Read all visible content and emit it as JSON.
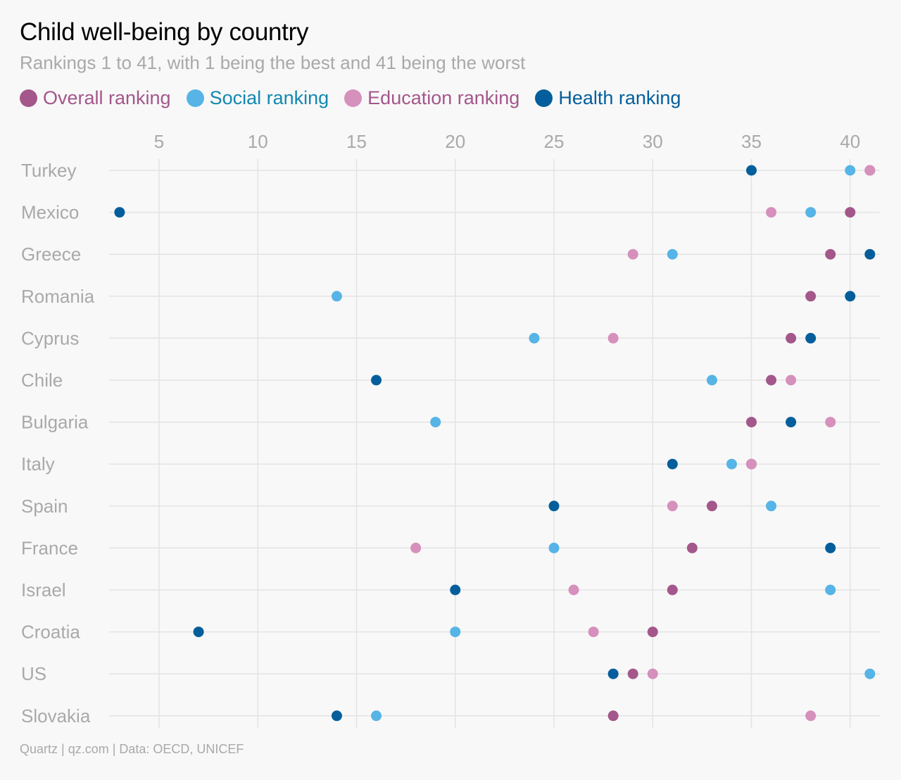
{
  "chart_data": {
    "type": "scatter",
    "title": "Child well-being by country",
    "subtitle": "Rankings 1 to 41, with 1 being the best and 41 being the worst",
    "source": "Quartz | qz.com | Data: OECD, UNICEF",
    "xlim": [
      2.5,
      41.5
    ],
    "x_ticks": [
      5,
      10,
      15,
      20,
      25,
      30,
      35,
      40
    ],
    "grid": true,
    "legend_position": "top-left",
    "categories": [
      "Turkey",
      "Mexico",
      "Greece",
      "Romania",
      "Cyprus",
      "Chile",
      "Bulgaria",
      "Italy",
      "Spain",
      "France",
      "Israel",
      "Croatia",
      "US",
      "Slovakia"
    ],
    "series": [
      {
        "name": "Overall ranking",
        "color": "#a4578a",
        "values": [
          41,
          40,
          39,
          38,
          37,
          36,
          35,
          35,
          33,
          32,
          31,
          30,
          29,
          28
        ]
      },
      {
        "name": "Social ranking",
        "color": "#56b4e6",
        "values": [
          40,
          38,
          31,
          14,
          24,
          33,
          19,
          34,
          36,
          25,
          39,
          20,
          41,
          16
        ]
      },
      {
        "name": "Education ranking",
        "color": "#d690bc",
        "values": [
          41,
          36,
          29,
          null,
          28,
          37,
          39,
          35,
          31,
          18,
          26,
          27,
          30,
          38
        ]
      },
      {
        "name": "Health ranking",
        "color": "#045e9b",
        "values": [
          35,
          3,
          41,
          40,
          38,
          16,
          37,
          31,
          25,
          39,
          20,
          7,
          28,
          14
        ]
      }
    ],
    "legend_text_colors": [
      "#a4578a",
      "#1388b0",
      "#a4578a",
      "#045e9b"
    ]
  }
}
